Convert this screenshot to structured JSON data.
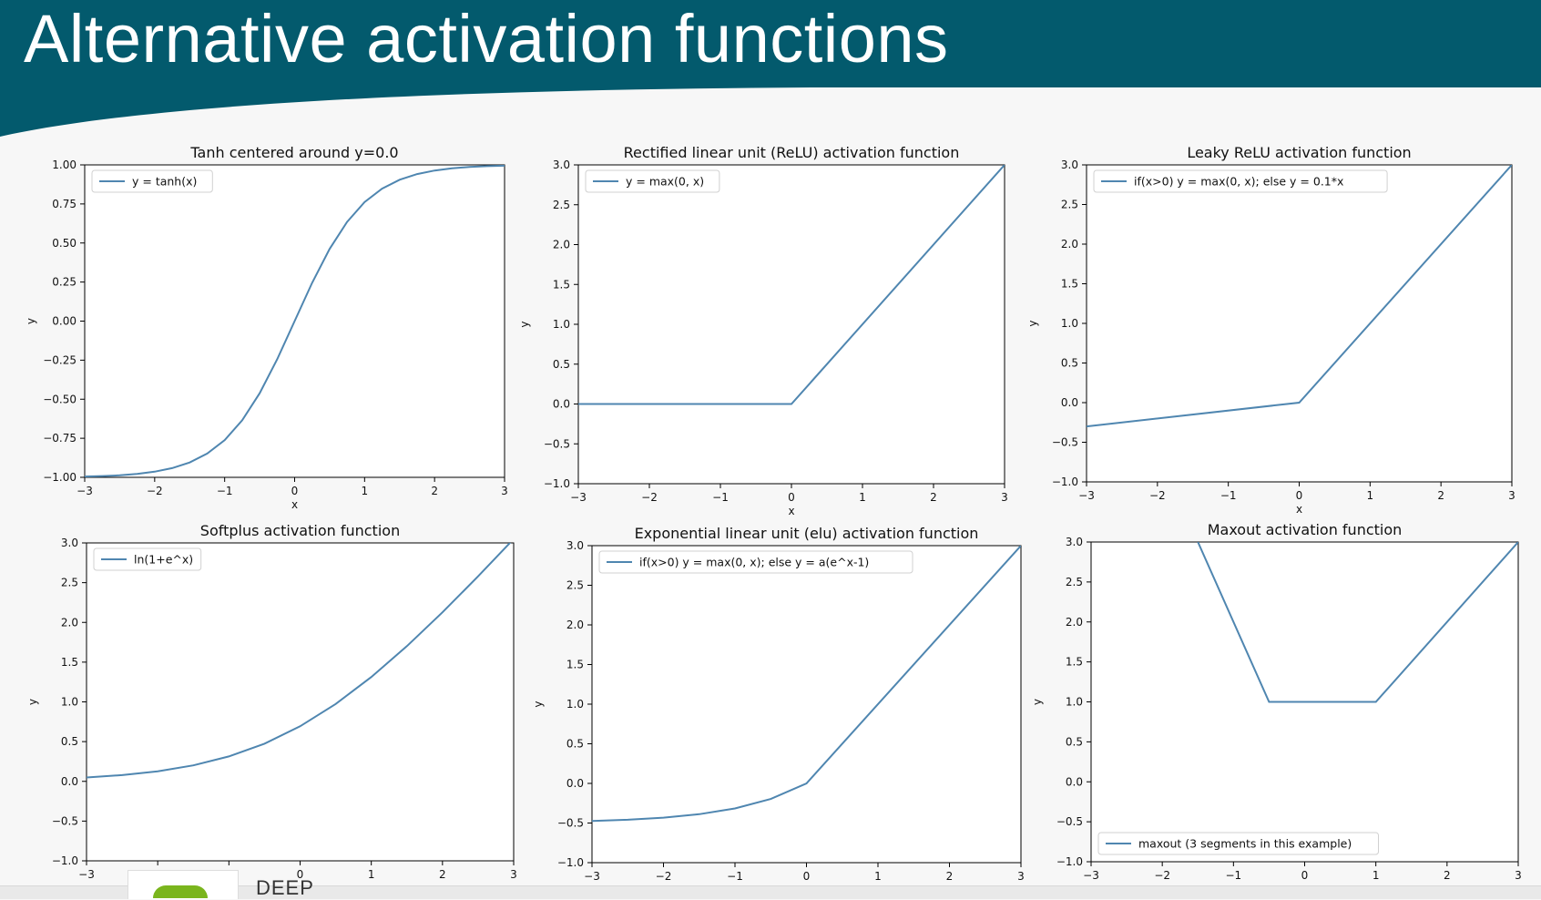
{
  "slide": {
    "title": "Alternative activation functions",
    "colors": {
      "header": "#035a6d",
      "line": "#4f86b0"
    }
  },
  "footer": {
    "logo_text": "DEEP"
  },
  "chart_data": [
    {
      "type": "line",
      "title": "Tanh centered around y=0.0",
      "xlabel": "x",
      "ylabel": "y",
      "xlim": [
        -3,
        3
      ],
      "ylim": [
        -1,
        1
      ],
      "xticks": [
        "−3",
        "−2",
        "−1",
        "0",
        "1",
        "2",
        "3"
      ],
      "yticks": [
        "1.00",
        "0.75",
        "0.50",
        "0.25",
        "0.00",
        "−0.25",
        "−0.50",
        "−0.75",
        "−1.00"
      ],
      "legend": "top-left",
      "series": [
        {
          "name": "y = tanh(x)",
          "x": [
            -3,
            -2.75,
            -2.5,
            -2.25,
            -2,
            -1.75,
            -1.5,
            -1.25,
            -1,
            -0.75,
            -0.5,
            -0.25,
            0,
            0.25,
            0.5,
            0.75,
            1,
            1.25,
            1.5,
            1.75,
            2,
            2.25,
            2.5,
            2.75,
            3
          ],
          "y": [
            -0.995,
            -0.992,
            -0.987,
            -0.978,
            -0.964,
            -0.941,
            -0.905,
            -0.848,
            -0.762,
            -0.635,
            -0.462,
            -0.245,
            0,
            0.245,
            0.462,
            0.635,
            0.762,
            0.848,
            0.905,
            0.941,
            0.964,
            0.978,
            0.987,
            0.992,
            0.995
          ]
        }
      ]
    },
    {
      "type": "line",
      "title": "Rectified linear unit (ReLU) activation function",
      "xlabel": "x",
      "ylabel": "y",
      "xlim": [
        -3,
        3
      ],
      "ylim": [
        -1,
        3
      ],
      "xticks": [
        "−3",
        "−2",
        "−1",
        "0",
        "1",
        "2",
        "3"
      ],
      "yticks": [
        "3.0",
        "2.5",
        "2.0",
        "1.5",
        "1.0",
        "0.5",
        "0.0",
        "−0.5",
        "−1.0"
      ],
      "legend": "top-left",
      "series": [
        {
          "name": "y = max(0, x)",
          "x": [
            -3,
            0,
            3
          ],
          "y": [
            0,
            0,
            3
          ]
        }
      ]
    },
    {
      "type": "line",
      "title": "Leaky ReLU activation function",
      "xlabel": "x",
      "ylabel": "y",
      "xlim": [
        -3,
        3
      ],
      "ylim": [
        -1,
        3
      ],
      "xticks": [
        "−3",
        "−2",
        "−1",
        "0",
        "1",
        "2",
        "3"
      ],
      "yticks": [
        "3.0",
        "2.5",
        "2.0",
        "1.5",
        "1.0",
        "0.5",
        "0.0",
        "−0.5",
        "−1.0"
      ],
      "legend": "top-left",
      "series": [
        {
          "name": "if(x>0) y = max(0, x); else y = 0.1*x",
          "x": [
            -3,
            0,
            3
          ],
          "y": [
            -0.3,
            0,
            3
          ]
        }
      ]
    },
    {
      "type": "line",
      "title": "Softplus activation function",
      "xlabel": "x",
      "ylabel": "y",
      "xlim": [
        -3,
        3
      ],
      "ylim": [
        -1,
        3
      ],
      "xticks": [
        "−3",
        "−2",
        "−1",
        "0",
        "1",
        "2",
        "3"
      ],
      "yticks": [
        "3.0",
        "2.5",
        "2.0",
        "1.5",
        "1.0",
        "0.5",
        "0.0",
        "−0.5",
        "−1.0"
      ],
      "legend": "top-left",
      "series": [
        {
          "name": "ln(1+e^x)",
          "x": [
            -3,
            -2.5,
            -2,
            -1.5,
            -1,
            -0.5,
            0,
            0.5,
            1,
            1.5,
            2,
            2.5,
            3
          ],
          "y": [
            0.049,
            0.079,
            0.127,
            0.201,
            0.313,
            0.474,
            0.693,
            0.974,
            1.313,
            1.701,
            2.127,
            2.579,
            3.049
          ]
        }
      ]
    },
    {
      "type": "line",
      "title": "Exponential linear unit (elu) activation function",
      "xlabel": "x",
      "ylabel": "y",
      "xlim": [
        -3,
        3
      ],
      "ylim": [
        -1,
        3
      ],
      "xticks": [
        "−3",
        "−2",
        "−1",
        "0",
        "1",
        "2",
        "3"
      ],
      "yticks": [
        "3.0",
        "2.5",
        "2.0",
        "1.5",
        "1.0",
        "0.5",
        "0.0",
        "−0.5",
        "−1.0"
      ],
      "legend": "top-left",
      "series": [
        {
          "name": "if(x>0) y = max(0, x); else y = a(e^x-1)",
          "x": [
            -3,
            -2.5,
            -2,
            -1.5,
            -1,
            -0.5,
            0,
            3
          ],
          "y": [
            -0.475,
            -0.459,
            -0.432,
            -0.388,
            -0.316,
            -0.197,
            0,
            3
          ]
        }
      ]
    },
    {
      "type": "line",
      "title": "Maxout activation function",
      "xlabel": "x",
      "ylabel": "y",
      "xlim": [
        -3,
        3
      ],
      "ylim": [
        -1,
        3
      ],
      "xticks": [
        "−3",
        "−2",
        "−1",
        "0",
        "1",
        "2",
        "3"
      ],
      "yticks": [
        "3.0",
        "2.5",
        "2.0",
        "1.5",
        "1.0",
        "0.5",
        "0.0",
        "−0.5",
        "−1.0"
      ],
      "legend": "bottom-left",
      "series": [
        {
          "name": "maxout (3 segments in this example)",
          "x": [
            -1.5,
            -0.5,
            1,
            3
          ],
          "y": [
            3,
            1,
            1,
            3
          ]
        }
      ]
    }
  ]
}
